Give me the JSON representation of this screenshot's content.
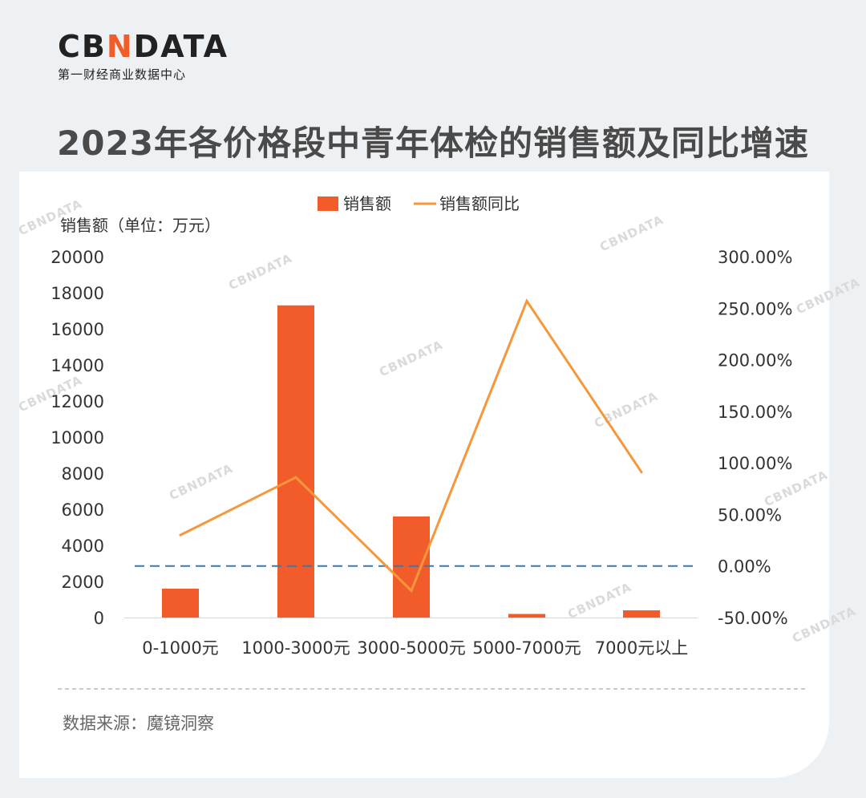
{
  "brand": {
    "logo_text_pre": "CB",
    "logo_text_accent": "N",
    "logo_text_post": "DATA",
    "subtitle": "第一财经商业数据中心",
    "accent_color": "#f25c2a"
  },
  "title": "2023年各价格段中青年体检的销售额及同比增速",
  "source": "数据来源：魔镜洞察",
  "watermark": "CBNDATA",
  "chart_data": {
    "type": "bar",
    "title": "2023年各价格段中青年体检的销售额及同比增速",
    "categories": [
      "0-1000元",
      "1000-3000元",
      "3000-5000元",
      "5000-7000元",
      "7000元以上"
    ],
    "series": [
      {
        "name": "销售额",
        "type": "bar",
        "axis": "left",
        "color": "#f25c2a",
        "values": [
          1600,
          17300,
          5600,
          200,
          400
        ]
      },
      {
        "name": "销售额同比",
        "type": "line",
        "axis": "right",
        "color": "#f5973a",
        "values": [
          30.0,
          86.0,
          -24.0,
          257.0,
          91.0
        ]
      }
    ],
    "ylabel": "销售额（单位：万元）",
    "ylim": [
      0,
      20000
    ],
    "yticks": [
      "20000",
      "18000",
      "16000",
      "14000",
      "12000",
      "10000",
      "8000",
      "6000",
      "4000",
      "2000",
      "0"
    ],
    "y2lim": [
      -50,
      300
    ],
    "y2ticks": [
      "300.00%",
      "250.00%",
      "200.00%",
      "150.00%",
      "100.00%",
      "50.00%",
      "0.00%",
      "-50.00%"
    ],
    "reference_line": {
      "axis": "right",
      "value": 0,
      "style": "dashed",
      "color": "#3a78ad"
    },
    "legend": "top-center",
    "grid": false
  }
}
